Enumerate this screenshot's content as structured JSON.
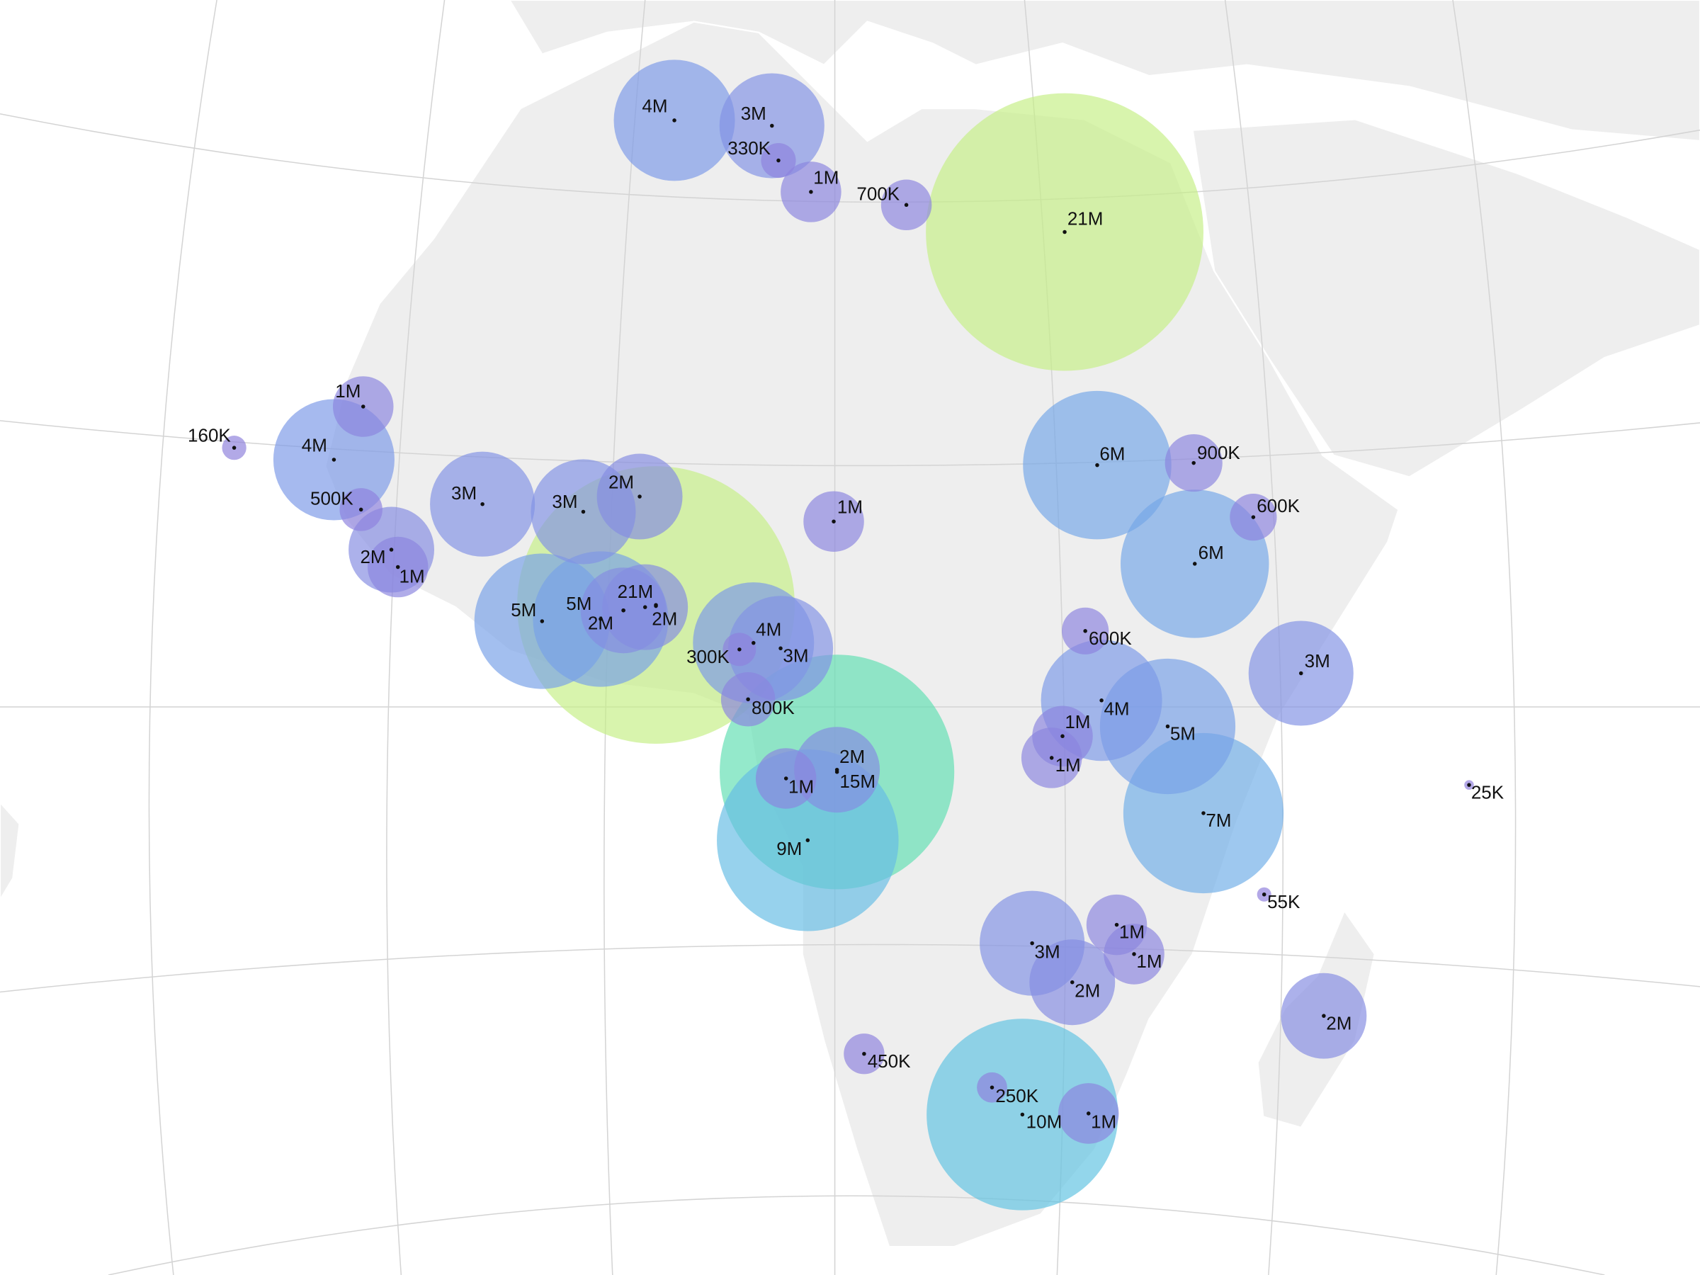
{
  "chart_data": {
    "type": "bubble-map",
    "values": [
      4000000,
      3000000,
      330000,
      1000000,
      700000,
      21000000,
      1000000,
      160000,
      4000000,
      500000,
      3000000,
      3000000,
      2000000,
      1000000,
      6000000,
      900000,
      600000,
      6000000,
      2000000,
      1000000,
      5000000,
      5000000,
      21000000,
      2000000,
      2000000,
      4000000,
      3000000,
      300000,
      800000,
      600000,
      3000000,
      4000000,
      5000000,
      1000000,
      1000000,
      15000000,
      2000000,
      1000000,
      9000000,
      7000000,
      25000,
      55000,
      3000000,
      1000000,
      1000000,
      2000000,
      2000000,
      450000,
      250000,
      10000000,
      1000000
    ],
    "value_labels": [
      "4M",
      "3M",
      "330K",
      "1M",
      "700K",
      "21M",
      "1M",
      "160K",
      "4M",
      "500K",
      "3M",
      "3M",
      "2M",
      "1M",
      "6M",
      "900K",
      "600K",
      "6M",
      "2M",
      "1M",
      "5M",
      "5M",
      "21M",
      "2M",
      "2M",
      "4M",
      "3M",
      "300K",
      "800K",
      "600K",
      "3M",
      "4M",
      "5M",
      "1M",
      "1M",
      "15M",
      "2M",
      "1M",
      "9M",
      "7M",
      "25K",
      "55K",
      "3M",
      "1M",
      "1M",
      "2M",
      "2M",
      "450K",
      "250K",
      "10M",
      "1M"
    ],
    "colors": [
      "#8f7fdc",
      "#7b9ae9",
      "#6ab8e6",
      "#4fd3d8",
      "#6ee896",
      "#c6ef86"
    ]
  }
}
